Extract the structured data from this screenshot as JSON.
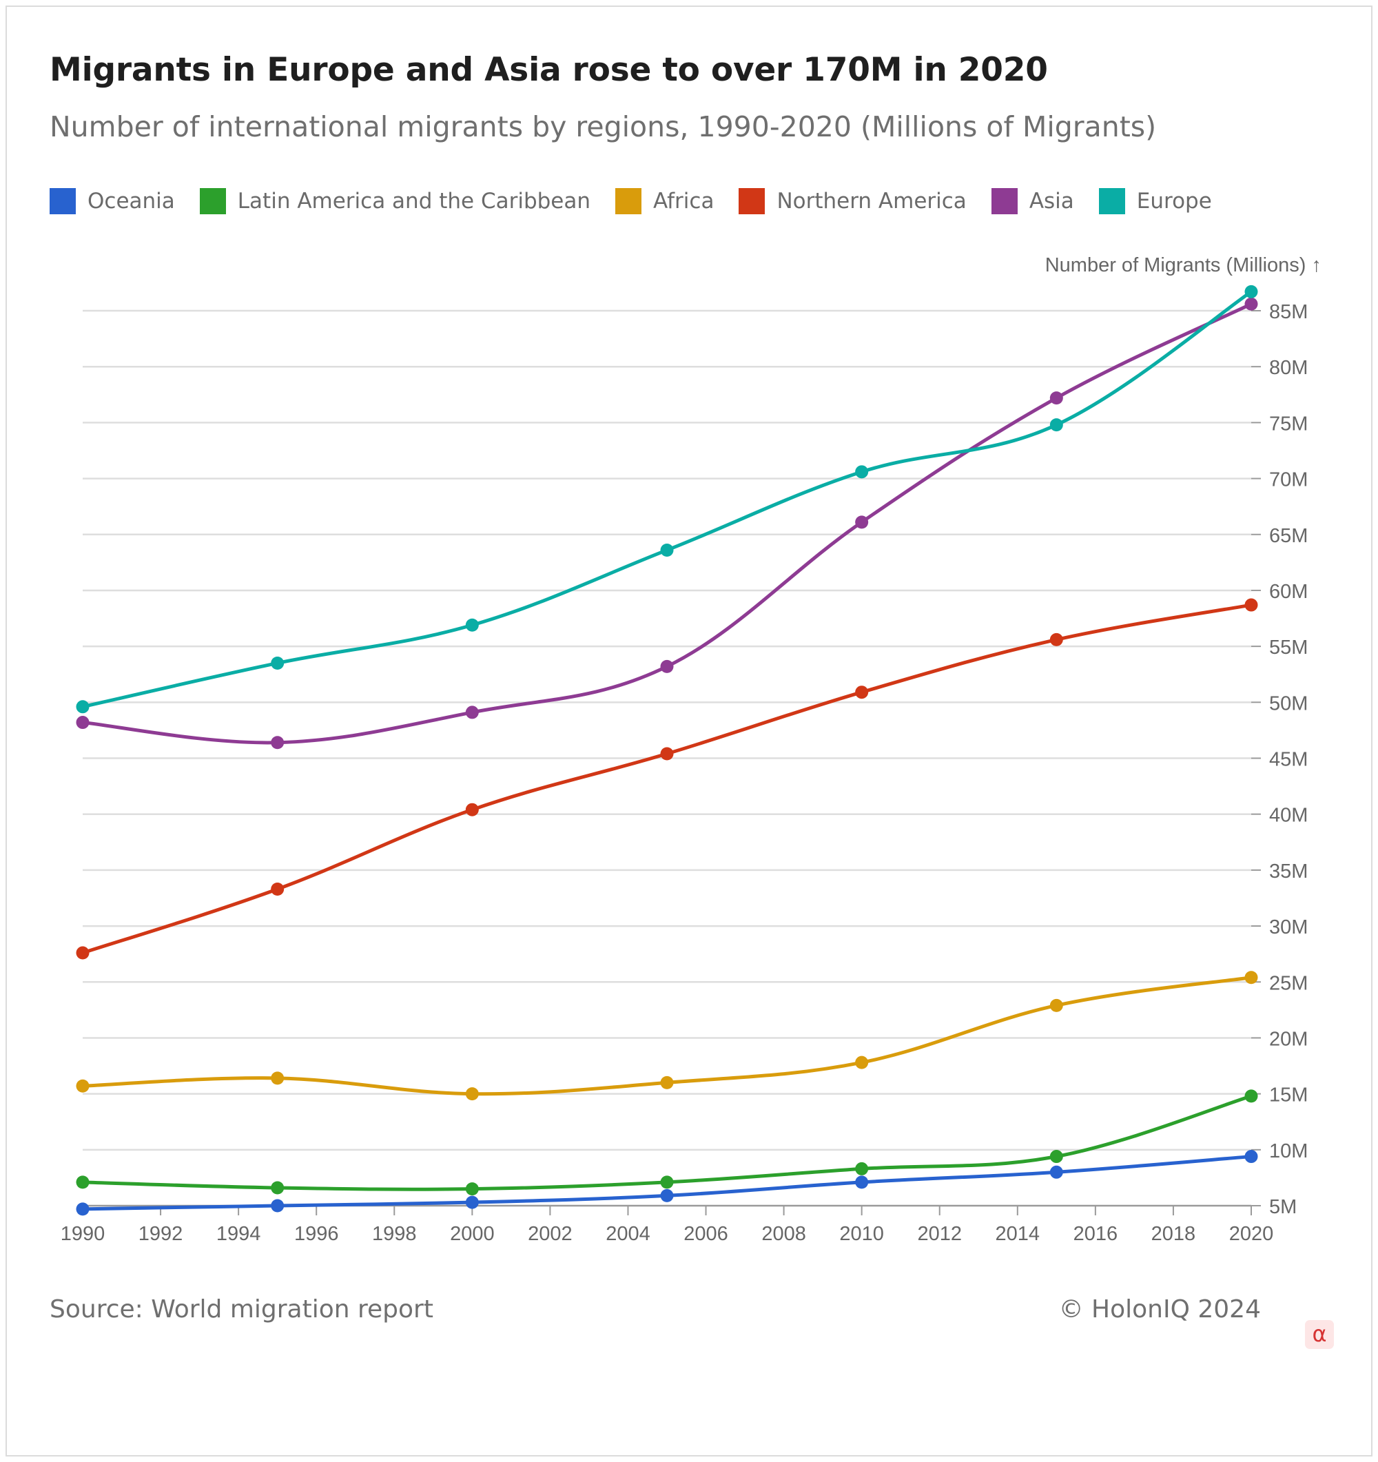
{
  "header": {
    "title": "Migrants in Europe and Asia rose to over 170M in 2020",
    "subtitle": "Number of international migrants by regions, 1990-2020 (Millions of Migrants)"
  },
  "footer": {
    "source": "Source: World migration report",
    "copyright": "© HolonIQ 2024",
    "badge": "α"
  },
  "chart_data": {
    "type": "line",
    "title": "Migrants in Europe and Asia rose to over 170M in 2020",
    "subtitle": "Number of international migrants by regions, 1990-2020 (Millions of Migrants)",
    "ylabel": "Number of Migrants (Millions) ↑",
    "xlabel": "",
    "x": [
      1990,
      1995,
      2000,
      2005,
      2010,
      2015,
      2020
    ],
    "xlim": [
      1990,
      2020
    ],
    "ylim": [
      5,
      85
    ],
    "x_ticks": [
      1990,
      1992,
      1994,
      1996,
      1998,
      2000,
      2002,
      2004,
      2006,
      2008,
      2010,
      2012,
      2014,
      2016,
      2018,
      2020
    ],
    "x_tick_labels": [
      "1990",
      "1992",
      "1994",
      "1996",
      "1998",
      "2000",
      "2002",
      "2004",
      "2006",
      "2008",
      "2010",
      "2012",
      "2014",
      "2016",
      "2018",
      "2020"
    ],
    "y_ticks": [
      5,
      10,
      15,
      20,
      25,
      30,
      35,
      40,
      45,
      50,
      55,
      60,
      65,
      70,
      75,
      80,
      85
    ],
    "y_tick_labels": [
      "5M",
      "10M",
      "15M",
      "20M",
      "25M",
      "30M",
      "35M",
      "40M",
      "45M",
      "50M",
      "55M",
      "60M",
      "65M",
      "70M",
      "75M",
      "80M",
      "85M"
    ],
    "y_axis_side": "right",
    "grid": true,
    "legend_position": "top-left",
    "series": [
      {
        "name": "Oceania",
        "color": "#2862cf",
        "values": [
          4.7,
          5.0,
          5.3,
          5.9,
          7.1,
          8.0,
          9.4
        ]
      },
      {
        "name": "Latin America and the Caribbean",
        "color": "#2ca02c",
        "values": [
          7.1,
          6.6,
          6.5,
          7.1,
          8.3,
          9.4,
          14.8
        ]
      },
      {
        "name": "Africa",
        "color": "#d99c0c",
        "values": [
          15.7,
          16.4,
          15.0,
          16.0,
          17.8,
          22.9,
          25.4
        ]
      },
      {
        "name": "Northern America",
        "color": "#d13716",
        "values": [
          27.6,
          33.3,
          40.4,
          45.4,
          50.9,
          55.6,
          58.7
        ]
      },
      {
        "name": "Asia",
        "color": "#8e3b93",
        "values": [
          48.2,
          46.4,
          49.1,
          53.2,
          66.1,
          77.2,
          85.6
        ]
      },
      {
        "name": "Europe",
        "color": "#0aada5",
        "values": [
          49.6,
          53.5,
          56.9,
          63.6,
          70.6,
          74.8,
          86.7
        ]
      }
    ]
  }
}
